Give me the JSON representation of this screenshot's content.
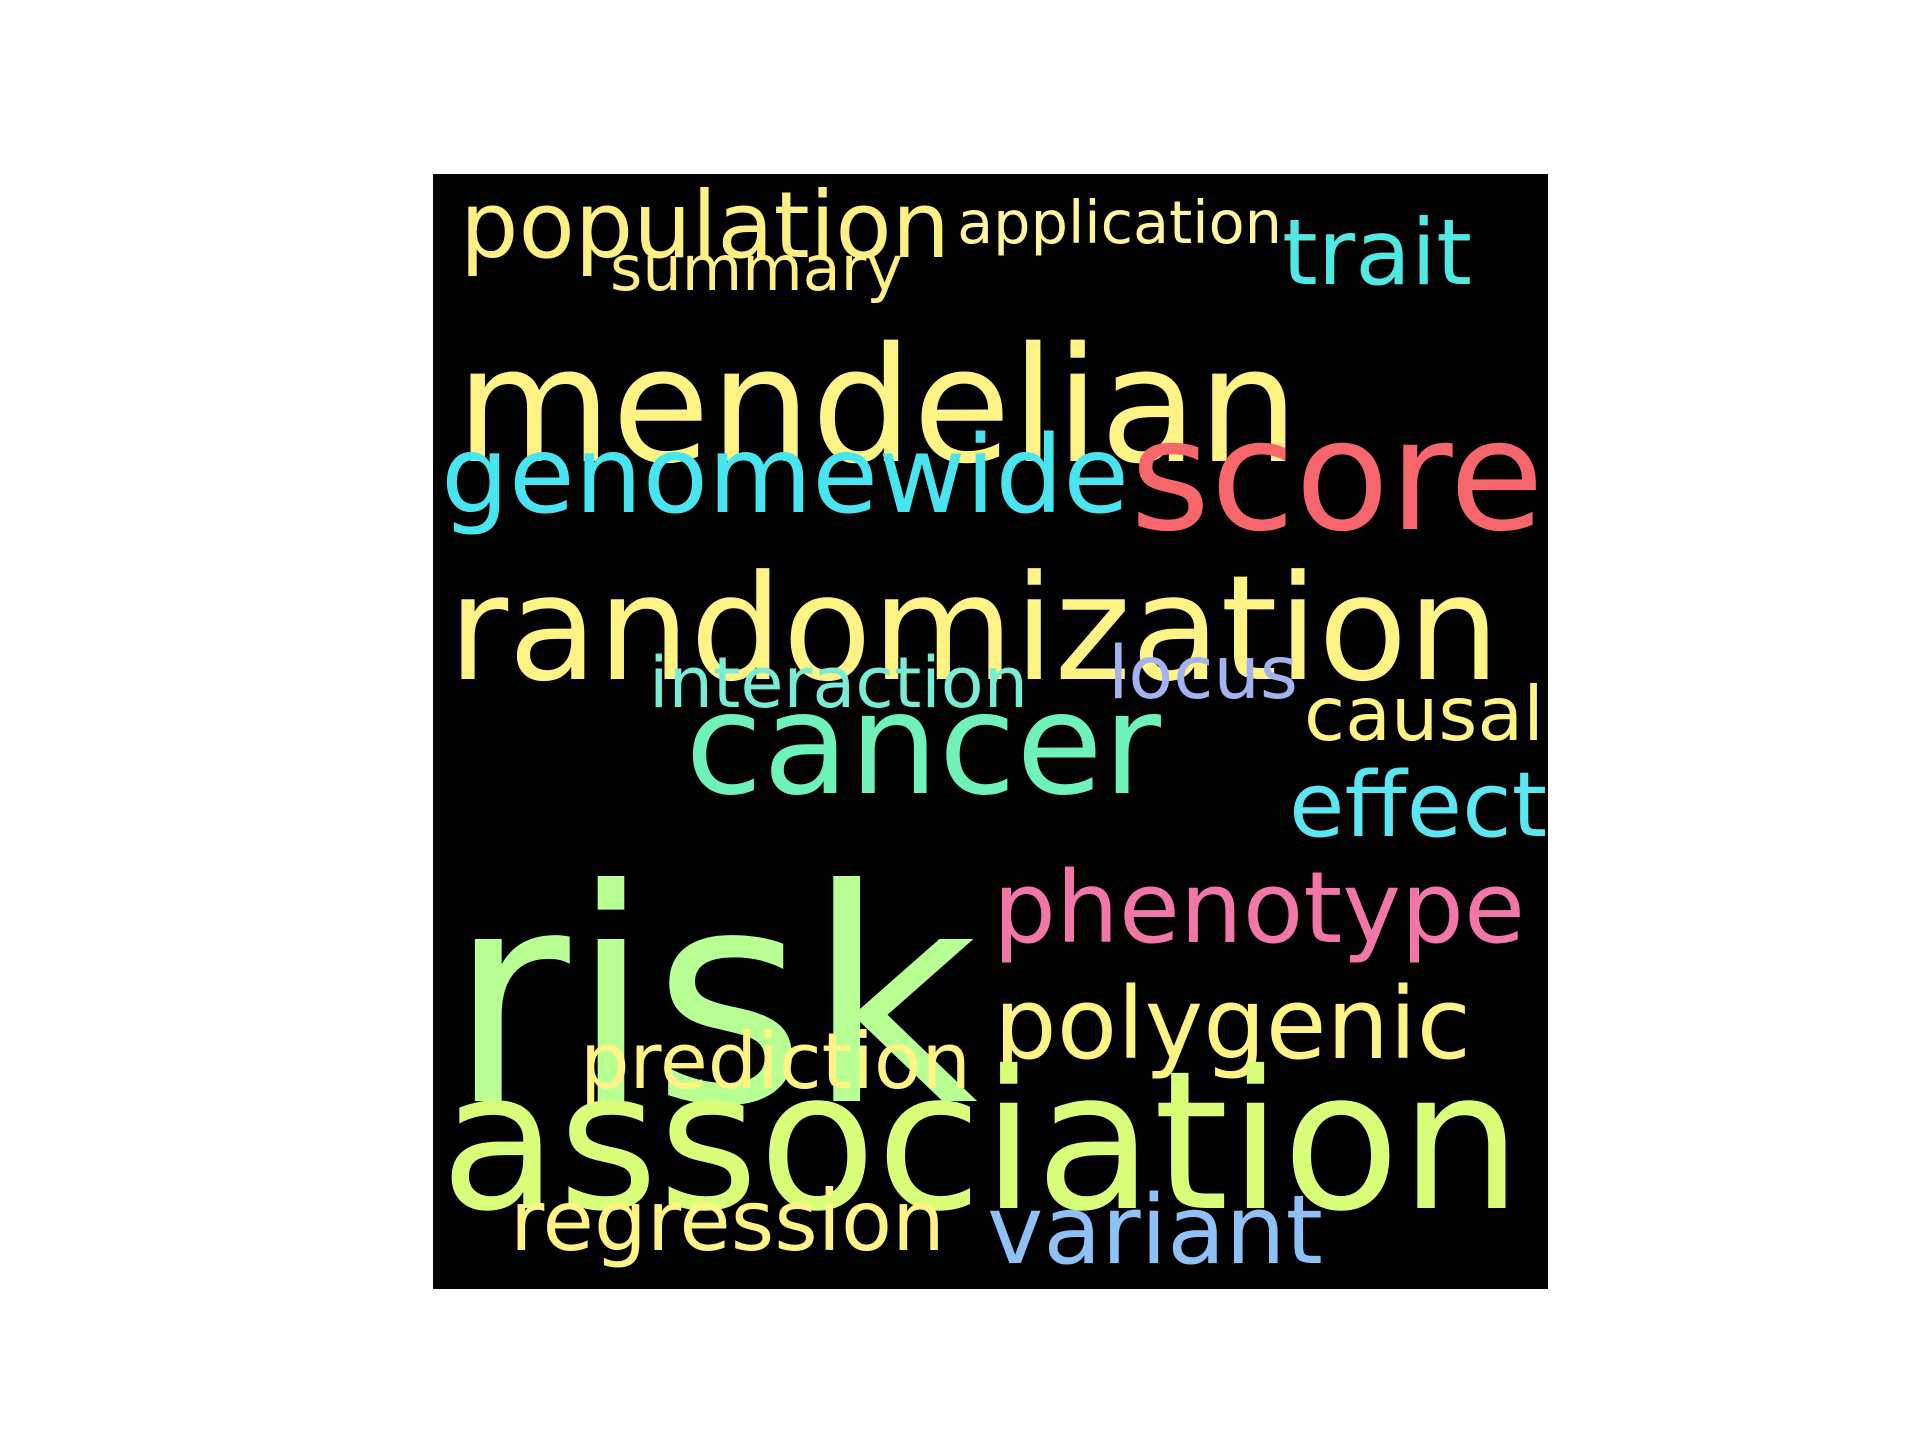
{
  "words": [
    {
      "text": "population",
      "color": "#ffef85"
    },
    {
      "text": "application",
      "color": "#fff6a0"
    },
    {
      "text": "trait",
      "color": "#4fe8e3"
    },
    {
      "text": "summary",
      "color": "#ffef85"
    },
    {
      "text": "mendelian",
      "color": "#fff385"
    },
    {
      "text": "genomewide",
      "color": "#48e5f0"
    },
    {
      "text": "score",
      "color": "#f7666a"
    },
    {
      "text": "randomization",
      "color": "#fff385"
    },
    {
      "text": "interaction",
      "color": "#78ecd4"
    },
    {
      "text": "locus",
      "color": "#a3b3f2"
    },
    {
      "text": "causal",
      "color": "#fff385"
    },
    {
      "text": "cancer",
      "color": "#6ff2b7"
    },
    {
      "text": "effect",
      "color": "#5ce6f2"
    },
    {
      "text": "risk",
      "color": "#b8ff94"
    },
    {
      "text": "phenotype",
      "color": "#f277a8"
    },
    {
      "text": "polygenic",
      "color": "#fff385"
    },
    {
      "text": "prediction",
      "color": "#fff385"
    },
    {
      "text": "association",
      "color": "#d9ff7a"
    },
    {
      "text": "regression",
      "color": "#fff385"
    },
    {
      "text": "variant",
      "color": "#8ec2f7"
    }
  ]
}
